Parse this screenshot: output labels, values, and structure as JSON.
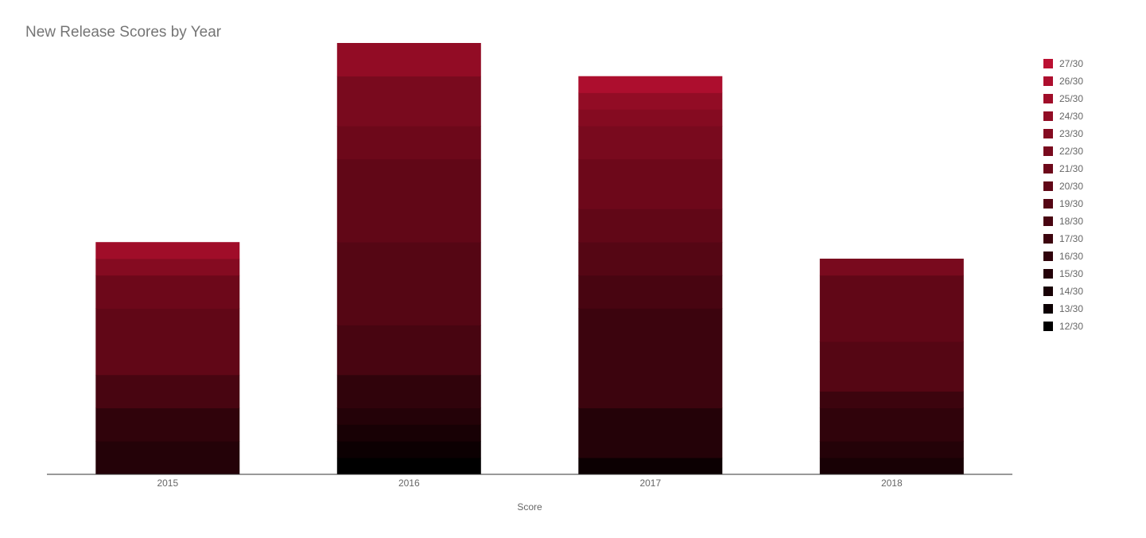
{
  "chart_data": {
    "type": "bar",
    "stacked": true,
    "title": "New Release Scores by Year",
    "xlabel": "Score",
    "ylabel": "",
    "ylim": [
      0,
      26
    ],
    "grid": false,
    "legend_position": "right",
    "categories": [
      "2015",
      "2016",
      "2017",
      "2018"
    ],
    "series": [
      {
        "name": "12/30",
        "color": "#000000",
        "values": [
          0,
          1,
          0,
          0
        ]
      },
      {
        "name": "13/30",
        "color": "#0c0002",
        "values": [
          0,
          1,
          1,
          0
        ]
      },
      {
        "name": "14/30",
        "color": "#180105",
        "values": [
          0,
          1,
          0,
          1
        ]
      },
      {
        "name": "15/30",
        "color": "#240208",
        "values": [
          2,
          1,
          3,
          1
        ]
      },
      {
        "name": "16/30",
        "color": "#30030b",
        "values": [
          2,
          2,
          0,
          2
        ]
      },
      {
        "name": "17/30",
        "color": "#3c040e",
        "values": [
          0,
          0,
          6,
          1
        ]
      },
      {
        "name": "18/30",
        "color": "#480511",
        "values": [
          2,
          3,
          2,
          0
        ]
      },
      {
        "name": "19/30",
        "color": "#550614",
        "values": [
          0,
          5,
          2,
          3
        ]
      },
      {
        "name": "20/30",
        "color": "#610717",
        "values": [
          4,
          5,
          2,
          4
        ]
      },
      {
        "name": "21/30",
        "color": "#6d081a",
        "values": [
          2,
          2,
          3,
          0
        ]
      },
      {
        "name": "22/30",
        "color": "#790a1e",
        "values": [
          0,
          3,
          2,
          1
        ]
      },
      {
        "name": "23/30",
        "color": "#850b21",
        "values": [
          1,
          0,
          1,
          0
        ]
      },
      {
        "name": "24/30",
        "color": "#920c25",
        "values": [
          0,
          2,
          1,
          0
        ]
      },
      {
        "name": "25/30",
        "color": "#a00d29",
        "values": [
          1,
          0,
          0,
          0
        ]
      },
      {
        "name": "26/30",
        "color": "#ad0e2e",
        "values": [
          0,
          0,
          1,
          0
        ]
      },
      {
        "name": "27/30",
        "color": "#bb1032",
        "values": [
          0,
          0,
          0,
          0
        ]
      }
    ]
  }
}
